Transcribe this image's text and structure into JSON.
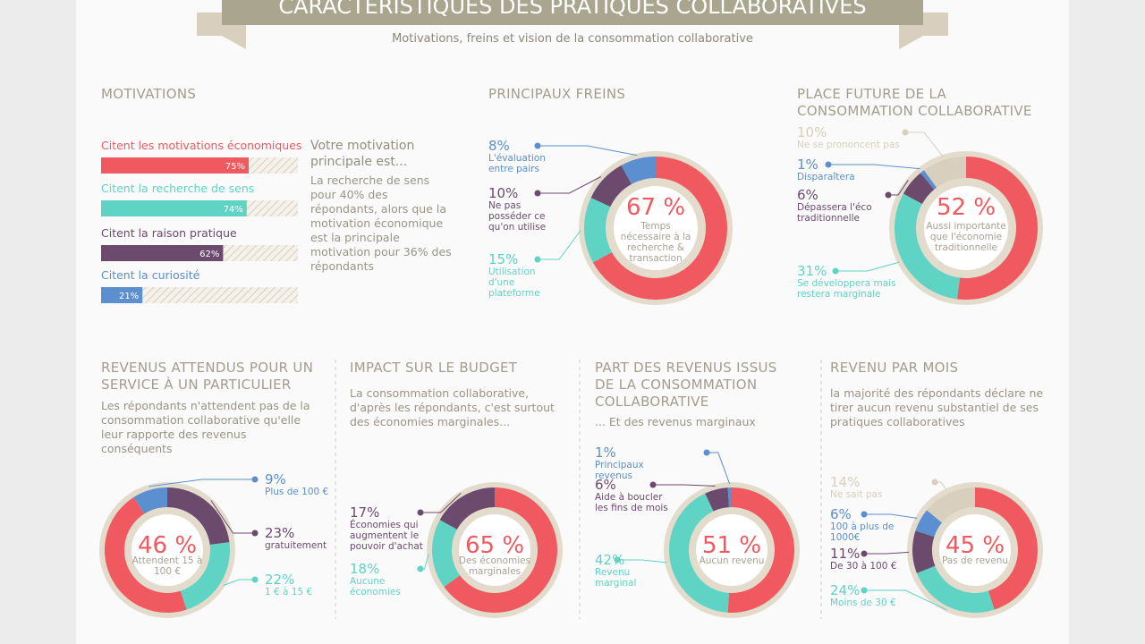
{
  "header": {
    "title": "CARACTÉRISTIQUES DES PRATIQUES COLLABORATIVES",
    "subtitle": "Motivations, freins et vision de la consommation collaborative"
  },
  "chart_data": [
    {
      "type": "bar",
      "title": "MOTIVATIONS",
      "categories": [
        "Citent les motivations économiques",
        "Citent la recherche de sens",
        "Citent la raison pratique",
        "Citent la curiosité"
      ],
      "values": [
        75,
        74,
        62,
        21
      ],
      "value_labels": [
        "75%",
        "74%",
        "62%",
        "21%"
      ],
      "colors": [
        "#f0595f",
        "#5fd3c4",
        "#6b4a6e",
        "#5b8fcf"
      ],
      "xlim": [
        0,
        100
      ],
      "note_title": "Votre motivation principale est...",
      "note": "La recherche de sens pour 40% des répondants, alors que la motivation économique est la principale motivation pour 36% des répondants"
    },
    {
      "type": "donut",
      "title": "PRINCIPAUX FREINS",
      "categories": [
        "Temps nécessaire à la recherche & transaction",
        "Utilisation d'une plateforme",
        "Ne pas posséder ce qu'on utilise",
        "L'évaluation entre pairs"
      ],
      "values": [
        67,
        15,
        10,
        8
      ],
      "value_labels": [
        "67 %",
        "15%",
        "10%",
        "8%"
      ],
      "colors": [
        "#f0595f",
        "#5fd3c4",
        "#6b4a6e",
        "#5b8fcf"
      ]
    },
    {
      "type": "donut",
      "title": "PLACE FUTURE DE LA CONSOMMATION COLLABORATIVE",
      "categories": [
        "Aussi importante que l'économie traditionnelle",
        "Se développera mais restera marginale",
        "Dépassera l'éco traditionnelle",
        "Disparaîtera",
        "Ne se prononcent pas"
      ],
      "values": [
        52,
        31,
        6,
        1,
        10
      ],
      "value_labels": [
        "52 %",
        "31%",
        "6%",
        "1%",
        "10%"
      ],
      "colors": [
        "#f0595f",
        "#5fd3c4",
        "#6b4a6e",
        "#5b8fcf",
        "#d8cfbe"
      ]
    },
    {
      "type": "donut",
      "title": "REVENUS ATTENDUS POUR UN SERVICE À UN PARTICULIER",
      "description": "Les répondants n'attendent pas de la consommation collaborative qu'elle leur rapporte des revenus conséquents",
      "categories": [
        "Attendent 15 à 100 €",
        "Plus de 100 €",
        "gratuitement",
        "1 € à 15 €"
      ],
      "values": [
        46,
        9,
        23,
        22
      ],
      "value_labels": [
        "46 %",
        "9%",
        "23%",
        "22%"
      ],
      "colors": [
        "#f0595f",
        "#5b8fcf",
        "#6b4a6e",
        "#5fd3c4"
      ]
    },
    {
      "type": "donut",
      "title": "IMPACT SUR LE BUDGET",
      "description": "La consommation collaborative, d'après les répondants, c'est surtout des économies marginales...",
      "categories": [
        "Des économies marginales",
        "Aucune économies",
        "Économies qui augmentent le pouvoir d'achat"
      ],
      "values": [
        65,
        18,
        17
      ],
      "value_labels": [
        "65 %",
        "18%",
        "17%"
      ],
      "colors": [
        "#f0595f",
        "#5fd3c4",
        "#6b4a6e"
      ]
    },
    {
      "type": "donut",
      "title": "PART DES REVENUS ISSUS DE LA CONSOMMATION COLLABORATIVE",
      "description": "... Et des revenus marginaux",
      "categories": [
        "Aucun revenu",
        "Revenu marginal",
        "Aide à boucler les fins de mois",
        "Principaux revenus"
      ],
      "values": [
        51,
        42,
        6,
        1
      ],
      "value_labels": [
        "51 %",
        "42%",
        "6%",
        "1%"
      ],
      "colors": [
        "#f0595f",
        "#5fd3c4",
        "#6b4a6e",
        "#5b8fcf"
      ]
    },
    {
      "type": "donut",
      "title": "REVENU PAR MOIS",
      "description": "la majorité des répondants déclare ne tirer aucun revenu substantiel de ses pratiques collaboratives",
      "categories": [
        "Pas de revenu",
        "Moins de 30 €",
        "De 30 à 100 €",
        "100 à plus de 1000€",
        "Ne sait pas"
      ],
      "values": [
        45,
        24,
        11,
        6,
        14
      ],
      "value_labels": [
        "45 %",
        "24%",
        "11%",
        "6%",
        "14%"
      ],
      "colors": [
        "#f0595f",
        "#5fd3c4",
        "#6b4a6e",
        "#5b8fcf",
        "#d8cfbe"
      ]
    }
  ]
}
